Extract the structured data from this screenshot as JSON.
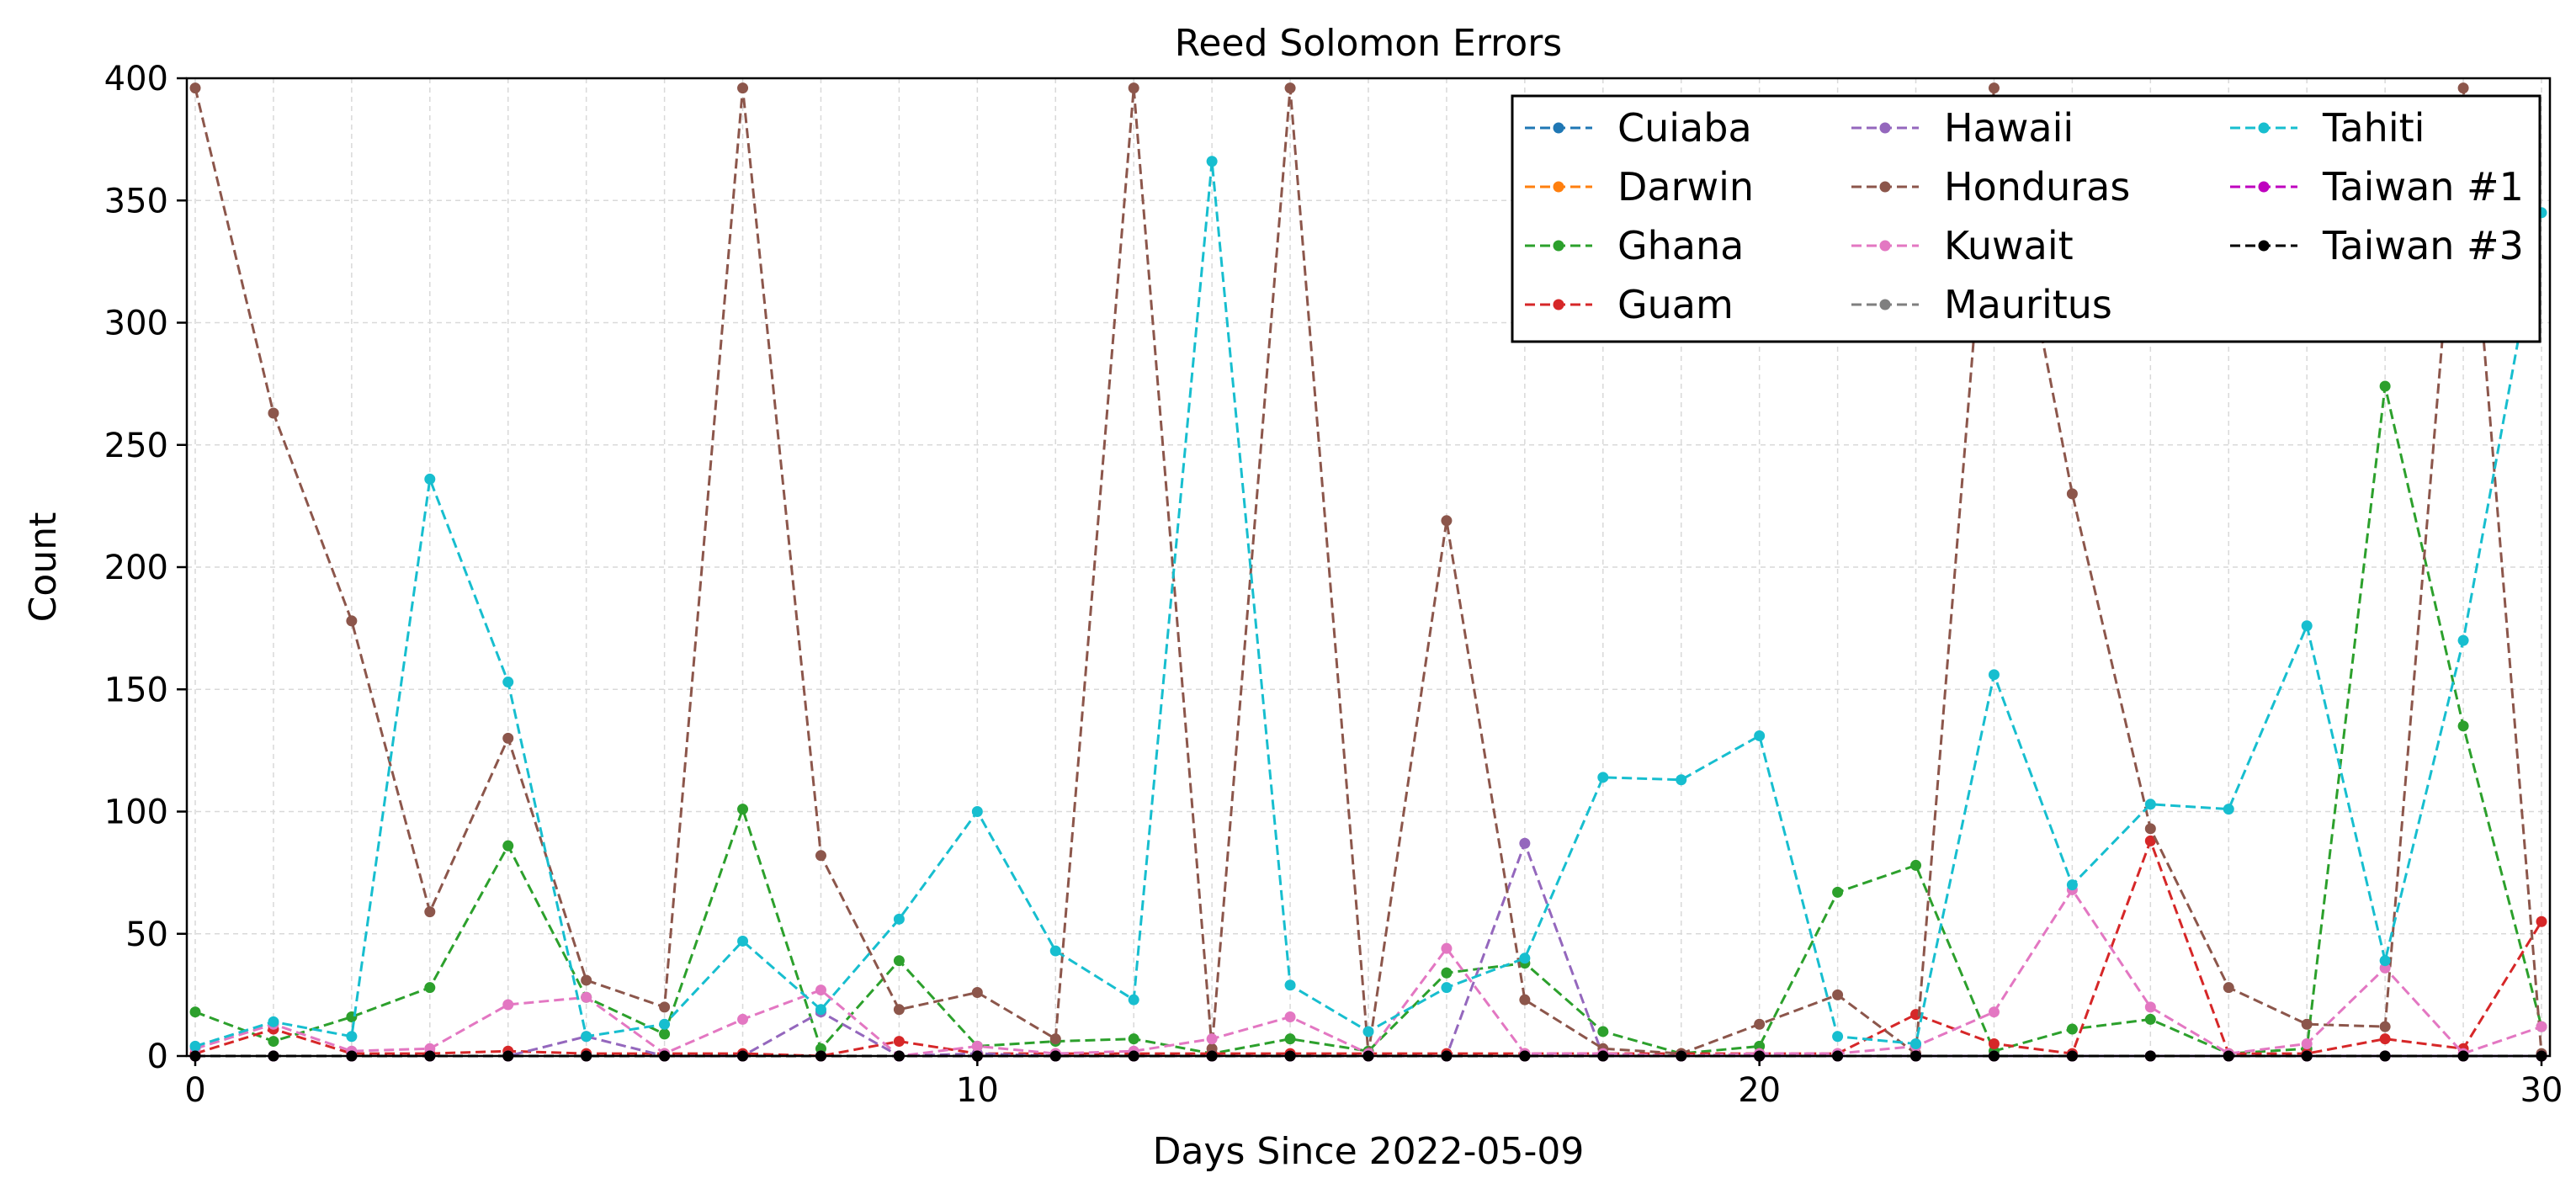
{
  "chart_data": {
    "type": "line",
    "title": "Reed Solomon Errors",
    "xlabel": "Days Since 2022-05-09",
    "ylabel": "Count",
    "xlim": [
      0,
      30
    ],
    "ylim": [
      0,
      400
    ],
    "xticks": [
      0,
      10,
      20,
      30
    ],
    "yticks": [
      0,
      50,
      100,
      150,
      200,
      250,
      300,
      350,
      400
    ],
    "grid": true,
    "line_style": "dashed",
    "marker": "circle",
    "legend_position": "top-right",
    "legend_columns": 3,
    "x": [
      0,
      1,
      2,
      3,
      4,
      5,
      6,
      7,
      8,
      9,
      10,
      11,
      12,
      13,
      14,
      15,
      16,
      17,
      18,
      19,
      20,
      21,
      22,
      23,
      24,
      25,
      26,
      27,
      28,
      29,
      30
    ],
    "series": [
      {
        "name": "Cuiaba",
        "color": "#1f77b4",
        "values": [
          0,
          0,
          0,
          0,
          0,
          0,
          0,
          0,
          0,
          0,
          0,
          0,
          0,
          0,
          0,
          0,
          0,
          0,
          0,
          0,
          0,
          0,
          0,
          0,
          0,
          0,
          0,
          0,
          0,
          0,
          0
        ]
      },
      {
        "name": "Darwin",
        "color": "#ff7f0e",
        "values": [
          0,
          0,
          0,
          0,
          0,
          0,
          0,
          0,
          0,
          0,
          0,
          0,
          0,
          0,
          0,
          0,
          0,
          0,
          0,
          0,
          0,
          0,
          0,
          0,
          0,
          0,
          0,
          0,
          0,
          0,
          0
        ]
      },
      {
        "name": "Ghana",
        "color": "#2ca02c",
        "values": [
          18,
          6,
          16,
          28,
          86,
          24,
          9,
          101,
          3,
          39,
          4,
          6,
          7,
          1,
          7,
          2,
          34,
          38,
          10,
          1,
          4,
          67,
          78,
          2,
          11,
          15,
          1,
          3,
          274,
          135,
          12
        ]
      },
      {
        "name": "Guam",
        "color": "#d62728",
        "values": [
          1,
          11,
          1,
          1,
          2,
          1,
          1,
          1,
          0,
          6,
          1,
          1,
          1,
          1,
          1,
          1,
          1,
          1,
          1,
          1,
          1,
          1,
          17,
          5,
          1,
          88,
          1,
          1,
          7,
          3,
          55
        ]
      },
      {
        "name": "Hawaii",
        "color": "#9467bd",
        "values": [
          0,
          0,
          0,
          0,
          0,
          8,
          0,
          0,
          18,
          0,
          1,
          0,
          0,
          0,
          0,
          0,
          0,
          87,
          0,
          0,
          0,
          0,
          0,
          0,
          0,
          0,
          0,
          0,
          0,
          0,
          0
        ]
      },
      {
        "name": "Honduras",
        "color": "#8c564b",
        "values": [
          396,
          263,
          178,
          59,
          130,
          31,
          20,
          396,
          82,
          19,
          26,
          7,
          396,
          3,
          396,
          1,
          219,
          23,
          3,
          1,
          13,
          25,
          1,
          396,
          230,
          93,
          28,
          13,
          12,
          396,
          1
        ]
      },
      {
        "name": "Kuwait",
        "color": "#e377c2",
        "values": [
          3,
          13,
          2,
          3,
          21,
          24,
          1,
          15,
          27,
          0,
          4,
          1,
          2,
          7,
          16,
          1,
          44,
          1,
          1,
          0,
          1,
          1,
          4,
          18,
          68,
          20,
          1,
          5,
          36,
          1,
          12
        ]
      },
      {
        "name": "Mauritus",
        "color": "#7f7f7f",
        "values": [
          0,
          0,
          0,
          0,
          0,
          0,
          0,
          0,
          0,
          0,
          0,
          0,
          0,
          0,
          0,
          0,
          0,
          0,
          0,
          0,
          0,
          0,
          0,
          0,
          0,
          0,
          0,
          0,
          0,
          0,
          0
        ]
      },
      {
        "name": "Tahiti",
        "color": "#17becf",
        "values": [
          4,
          14,
          8,
          236,
          153,
          8,
          13,
          47,
          19,
          56,
          100,
          43,
          23,
          366,
          29,
          10,
          28,
          40,
          114,
          113,
          131,
          8,
          5,
          156,
          70,
          103,
          101,
          176,
          39,
          170,
          345
        ]
      },
      {
        "name": "Taiwan #1",
        "color": "#bf00bf",
        "values": [
          0,
          0,
          0,
          0,
          0,
          0,
          0,
          0,
          0,
          0,
          0,
          0,
          0,
          0,
          0,
          0,
          0,
          0,
          0,
          0,
          0,
          0,
          0,
          0,
          0,
          0,
          0,
          0,
          0,
          0,
          0
        ]
      },
      {
        "name": "Taiwan #3",
        "color": "#000000",
        "values": [
          0,
          0,
          0,
          0,
          0,
          0,
          0,
          0,
          0,
          0,
          0,
          0,
          0,
          0,
          0,
          0,
          0,
          0,
          0,
          0,
          0,
          0,
          0,
          0,
          0,
          0,
          0,
          0,
          0,
          0,
          0
        ]
      }
    ]
  }
}
